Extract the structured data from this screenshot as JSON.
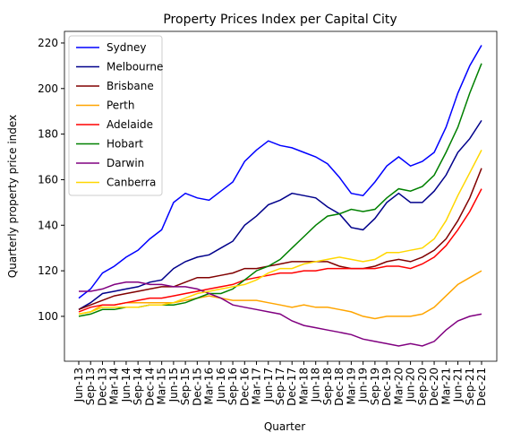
{
  "chart_data": {
    "type": "line",
    "title": "Property Prices Index per Capital City",
    "xlabel": "Quarter",
    "ylabel": "Quarterly property price index",
    "categories": [
      "Jun-13",
      "Sep-13",
      "Dec-13",
      "Mar-14",
      "Jun-14",
      "Sep-14",
      "Dec-14",
      "Mar-15",
      "Jun-15",
      "Sep-15",
      "Dec-15",
      "Mar-16",
      "Jun-16",
      "Sep-16",
      "Dec-16",
      "Mar-17",
      "Jun-17",
      "Sep-17",
      "Dec-17",
      "Mar-18",
      "Jun-18",
      "Sep-18",
      "Dec-18",
      "Mar-19",
      "Jun-19",
      "Sep-19",
      "Dec-19",
      "Mar-20",
      "Jun-20",
      "Sep-20",
      "Dec-20",
      "Mar-21",
      "Jun-21",
      "Sep-21",
      "Dec-21"
    ],
    "series": [
      {
        "name": "Sydney",
        "color": "#0000ff",
        "values": [
          108,
          112,
          119,
          122,
          126,
          129,
          134,
          138,
          150,
          154,
          152,
          151,
          155,
          159,
          168,
          173,
          177,
          175,
          174,
          172,
          170,
          167,
          161,
          154,
          153,
          159,
          166,
          170,
          166,
          168,
          172,
          183,
          198,
          210,
          219
        ]
      },
      {
        "name": "Melbourne",
        "color": "#00008b",
        "values": [
          103,
          106,
          110,
          111,
          112,
          113,
          115,
          116,
          121,
          124,
          126,
          127,
          130,
          133,
          140,
          144,
          149,
          151,
          154,
          153,
          152,
          148,
          145,
          139,
          138,
          143,
          150,
          154,
          150,
          150,
          155,
          162,
          172,
          178,
          186
        ]
      },
      {
        "name": "Brisbane",
        "color": "#800000",
        "values": [
          103,
          105,
          107,
          109,
          110,
          111,
          112,
          113,
          113,
          115,
          117,
          117,
          118,
          119,
          121,
          121,
          122,
          123,
          124,
          124,
          124,
          124,
          122,
          121,
          121,
          122,
          124,
          125,
          124,
          126,
          129,
          134,
          142,
          152,
          165
        ]
      },
      {
        "name": "Perth",
        "color": "#ffa500",
        "values": [
          101,
          102,
          105,
          105,
          106,
          106,
          106,
          106,
          106,
          107,
          108,
          109,
          108,
          107,
          107,
          107,
          106,
          105,
          104,
          105,
          104,
          104,
          103,
          102,
          100,
          99,
          100,
          100,
          100,
          101,
          104,
          109,
          114,
          117,
          120
        ]
      },
      {
        "name": "Adelaide",
        "color": "#ff0000",
        "values": [
          102,
          104,
          105,
          105,
          106,
          107,
          108,
          108,
          109,
          110,
          111,
          112,
          113,
          114,
          116,
          117,
          118,
          119,
          119,
          120,
          120,
          121,
          121,
          121,
          121,
          121,
          122,
          122,
          121,
          123,
          126,
          131,
          138,
          146,
          156
        ]
      },
      {
        "name": "Hobart",
        "color": "#008000",
        "values": [
          100,
          101,
          103,
          103,
          104,
          104,
          105,
          105,
          105,
          106,
          108,
          110,
          110,
          112,
          116,
          120,
          122,
          125,
          130,
          135,
          140,
          144,
          145,
          147,
          146,
          147,
          152,
          156,
          155,
          157,
          162,
          172,
          183,
          198,
          211
        ]
      },
      {
        "name": "Darwin",
        "color": "#800080",
        "values": [
          111,
          111,
          112,
          114,
          115,
          115,
          114,
          114,
          113,
          113,
          112,
          110,
          108,
          105,
          104,
          103,
          102,
          101,
          98,
          96,
          95,
          94,
          93,
          92,
          90,
          89,
          88,
          87,
          88,
          87,
          89,
          94,
          98,
          100,
          101
        ]
      },
      {
        "name": "Canberra",
        "color": "#ffd700",
        "values": [
          101,
          102,
          104,
          104,
          104,
          104,
          105,
          105,
          106,
          108,
          110,
          111,
          112,
          113,
          114,
          116,
          119,
          121,
          121,
          123,
          124,
          125,
          126,
          125,
          124,
          125,
          128,
          128,
          129,
          130,
          134,
          142,
          153,
          163,
          173
        ]
      }
    ],
    "ylim": [
      80.3,
      225.1
    ],
    "yticks": [
      100,
      120,
      140,
      160,
      180,
      200,
      220
    ],
    "legend": "upper left"
  }
}
